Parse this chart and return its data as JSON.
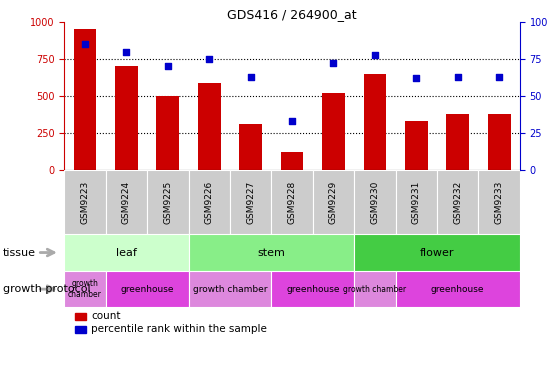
{
  "title": "GDS416 / 264900_at",
  "samples": [
    "GSM9223",
    "GSM9224",
    "GSM9225",
    "GSM9226",
    "GSM9227",
    "GSM9228",
    "GSM9229",
    "GSM9230",
    "GSM9231",
    "GSM9232",
    "GSM9233"
  ],
  "counts": [
    950,
    700,
    500,
    590,
    310,
    120,
    520,
    650,
    330,
    380,
    380
  ],
  "percentiles": [
    85,
    80,
    70,
    75,
    63,
    33,
    72,
    78,
    62,
    63,
    63
  ],
  "ylim_left": [
    0,
    1000
  ],
  "ylim_right": [
    0,
    100
  ],
  "yticks_left": [
    0,
    250,
    500,
    750,
    1000
  ],
  "yticks_right": [
    0,
    25,
    50,
    75,
    100
  ],
  "bar_color": "#cc0000",
  "dot_color": "#0000cc",
  "tissue_groups": [
    {
      "label": "leaf",
      "start": 0,
      "end": 3,
      "color": "#ccffcc"
    },
    {
      "label": "stem",
      "start": 3,
      "end": 7,
      "color": "#88ee88"
    },
    {
      "label": "flower",
      "start": 7,
      "end": 11,
      "color": "#44cc44"
    }
  ],
  "protocol_groups": [
    {
      "label": "growth\nchamber",
      "start": 0,
      "end": 1,
      "color": "#dd88dd"
    },
    {
      "label": "greenhouse",
      "start": 1,
      "end": 3,
      "color": "#dd44dd"
    },
    {
      "label": "growth chamber",
      "start": 3,
      "end": 5,
      "color": "#dd88dd"
    },
    {
      "label": "greenhouse",
      "start": 5,
      "end": 7,
      "color": "#dd44dd"
    },
    {
      "label": "growth chamber",
      "start": 7,
      "end": 8,
      "color": "#dd88dd"
    },
    {
      "label": "greenhouse",
      "start": 8,
      "end": 11,
      "color": "#dd44dd"
    }
  ],
  "tissue_label": "tissue",
  "protocol_label": "growth protocol",
  "legend_count_label": "count",
  "legend_pct_label": "percentile rank within the sample",
  "sample_bg_color": "#cccccc",
  "arrow_color": "#aaaaaa"
}
